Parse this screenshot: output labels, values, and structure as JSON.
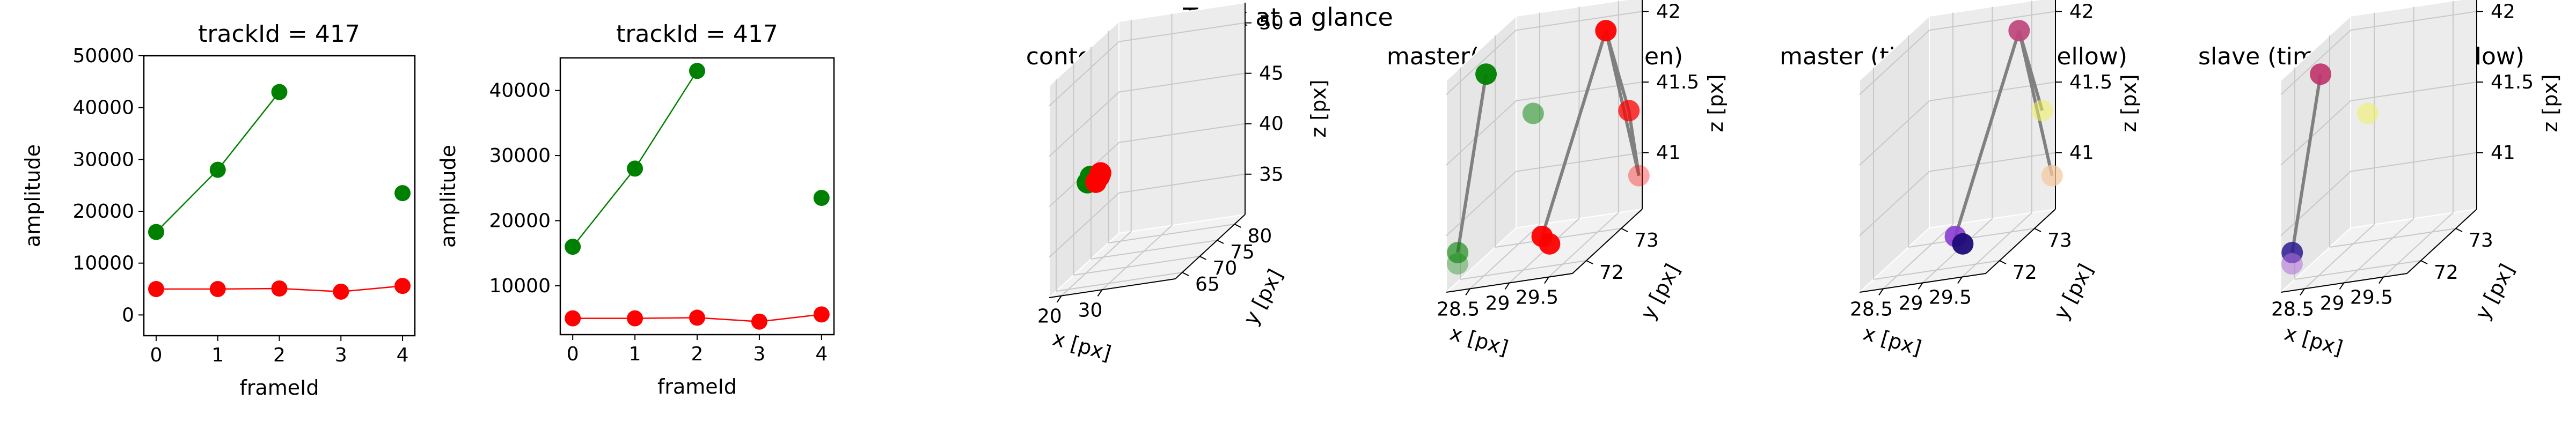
{
  "figure": {
    "suptitle": "Track at a glance"
  },
  "colors": {
    "master": "#ff0000",
    "slave": "#008000",
    "line": "#808080",
    "pane": "#f2f2f2",
    "pane_edge": "#ffffff",
    "grid": "#d9d9d9"
  },
  "chart_data": [
    {
      "type": "line",
      "title": "trackId = 417",
      "xlabel": "frameId",
      "ylabel": "amplitude",
      "xlim": [
        -0.2,
        4.2
      ],
      "ylim": [
        -4000,
        50000
      ],
      "xticks": [
        0,
        1,
        2,
        3,
        4
      ],
      "yticks": [
        0,
        10000,
        20000,
        30000,
        40000,
        50000
      ],
      "series": [
        {
          "color": "#008000",
          "segments": [
            [
              [
                0,
                16000
              ],
              [
                1,
                28000
              ],
              [
                2,
                43000
              ]
            ],
            [
              [
                4,
                23500
              ]
            ]
          ]
        },
        {
          "color": "#ff0000",
          "segments": [
            [
              [
                0,
                5000
              ],
              [
                1,
                5000
              ],
              [
                2,
                5100
              ],
              [
                3,
                4500
              ],
              [
                4,
                5600
              ]
            ]
          ]
        }
      ]
    },
    {
      "type": "line",
      "title": "trackId = 417",
      "xlabel": "frameId",
      "ylabel": "amplitude",
      "xlim": [
        -0.2,
        4.2
      ],
      "ylim": [
        2500,
        45000
      ],
      "xticks": [
        0,
        1,
        2,
        3,
        4
      ],
      "yticks": [
        10000,
        20000,
        30000,
        40000
      ],
      "series": [
        {
          "color": "#008000",
          "segments": [
            [
              [
                0,
                16000
              ],
              [
                1,
                28000
              ],
              [
                2,
                43000
              ]
            ],
            [
              [
                4,
                23500
              ]
            ]
          ]
        },
        {
          "color": "#ff0000",
          "segments": [
            [
              [
                0,
                5000
              ],
              [
                1,
                5000
              ],
              [
                2,
                5100
              ],
              [
                3,
                4500
              ],
              [
                4,
                5600
              ]
            ]
          ]
        }
      ]
    },
    {
      "type": "scatter3d",
      "title": "context +- 10px",
      "xlabel": "x [px]",
      "ylabel": "y [px]",
      "zlabel": "z [px]",
      "xlim": [
        17,
        48
      ],
      "ylim": [
        63,
        83
      ],
      "zlim": [
        31,
        52
      ],
      "xticks": [
        20,
        30
      ],
      "yticks": [
        65,
        70,
        75,
        80
      ],
      "zticks": [
        35,
        40,
        45,
        50
      ],
      "points": [
        {
          "x": 21.5,
          "y": 68.7,
          "z": 40.3,
          "color": "#008000"
        },
        {
          "x": 22.0,
          "y": 69.0,
          "z": 40.8,
          "color": "#008000"
        },
        {
          "x": 23.5,
          "y": 68.8,
          "z": 40.2,
          "color": "#ff0000"
        },
        {
          "x": 24.0,
          "y": 69.2,
          "z": 40.6,
          "color": "#ff0000"
        },
        {
          "x": 24.5,
          "y": 69.0,
          "z": 41.0,
          "color": "#ff0000"
        }
      ],
      "lines": []
    },
    {
      "type": "scatter3d",
      "title": "master(red) slave(green)",
      "xlabel": "x [px]",
      "ylabel": "y [px]",
      "zlabel": "z [px]",
      "xlim": [
        28.2,
        29.8
      ],
      "ylim": [
        71.6,
        73.6
      ],
      "zlim": [
        40.6,
        42.1
      ],
      "xticks": [
        28.5,
        29.0,
        29.5
      ],
      "yticks": [
        72,
        73
      ],
      "zticks": [
        41.0,
        41.5,
        42.0
      ],
      "points": [
        {
          "x": 28.35,
          "y": 72.4,
          "z": 41.95,
          "color": "#008000",
          "opacity": 0.95
        },
        {
          "x": 28.55,
          "y": 73.3,
          "z": 41.45,
          "color": "#008000",
          "opacity": 0.5
        },
        {
          "x": 28.3,
          "y": 71.7,
          "z": 40.85,
          "color": "#008000",
          "opacity": 0.6
        },
        {
          "x": 28.32,
          "y": 71.65,
          "z": 40.78,
          "color": "#008000",
          "opacity": 0.35
        },
        {
          "x": 29.45,
          "y": 73.35,
          "z": 41.95,
          "color": "#ff0000",
          "opacity": 0.95
        },
        {
          "x": 29.72,
          "y": 73.4,
          "z": 41.35,
          "color": "#ff0000",
          "opacity": 0.75
        },
        {
          "x": 29.78,
          "y": 73.55,
          "z": 40.85,
          "color": "#ff0000",
          "opacity": 0.35
        },
        {
          "x": 29.15,
          "y": 72.2,
          "z": 40.78,
          "color": "#ff0000",
          "opacity": 0.95
        },
        {
          "x": 29.2,
          "y": 72.3,
          "z": 40.7,
          "color": "#ff0000",
          "opacity": 0.95
        }
      ],
      "lines": [
        {
          "from": 0,
          "to": 2
        },
        {
          "from": 7,
          "to": 4
        },
        {
          "from": 4,
          "to": 5
        },
        {
          "from": 5,
          "to": 6
        },
        {
          "from": 4,
          "to": 6
        }
      ]
    },
    {
      "type": "scatter3d",
      "title": "master (time: blue -> yellow)",
      "xlabel": "x [px]",
      "ylabel": "y [px]",
      "zlabel": "z [px]",
      "xlim": [
        28.2,
        29.8
      ],
      "ylim": [
        71.6,
        73.6
      ],
      "zlim": [
        40.6,
        42.1
      ],
      "xticks": [
        28.5,
        29.0,
        29.5
      ],
      "yticks": [
        72,
        73
      ],
      "zticks": [
        41.0,
        41.5,
        42.0
      ],
      "points": [
        {
          "x": 29.45,
          "y": 73.35,
          "z": 41.95,
          "color": "#c0427a",
          "opacity": 0.9
        },
        {
          "x": 29.72,
          "y": 73.4,
          "z": 41.35,
          "color": "#f0f060",
          "opacity": 0.55
        },
        {
          "x": 29.78,
          "y": 73.55,
          "z": 40.85,
          "color": "#f5c8a0",
          "opacity": 0.75
        },
        {
          "x": 29.15,
          "y": 72.2,
          "z": 40.78,
          "color": "#8a3bd0",
          "opacity": 0.9
        },
        {
          "x": 29.2,
          "y": 72.3,
          "z": 40.7,
          "color": "#1e0a78",
          "opacity": 0.95
        }
      ],
      "lines": [
        {
          "from": 3,
          "to": 0
        },
        {
          "from": 0,
          "to": 2
        },
        {
          "from": 0,
          "to": 1
        }
      ]
    },
    {
      "type": "scatter3d",
      "title": "slave (time: blue -> yellow)",
      "xlabel": "x [px]",
      "ylabel": "y [px]",
      "zlabel": "z [px]",
      "xlim": [
        28.2,
        29.8
      ],
      "ylim": [
        71.6,
        73.6
      ],
      "zlim": [
        40.6,
        42.1
      ],
      "xticks": [
        28.5,
        29.0,
        29.5
      ],
      "yticks": [
        72,
        73
      ],
      "zticks": [
        41.0,
        41.5,
        42.0
      ],
      "points": [
        {
          "x": 28.35,
          "y": 72.4,
          "z": 41.95,
          "color": "#c0326a",
          "opacity": 0.9
        },
        {
          "x": 28.55,
          "y": 73.3,
          "z": 41.45,
          "color": "#f0f060",
          "opacity": 0.55
        },
        {
          "x": 28.3,
          "y": 71.7,
          "z": 40.85,
          "color": "#2a1a90",
          "opacity": 0.85
        },
        {
          "x": 28.32,
          "y": 71.65,
          "z": 40.78,
          "color": "#b070d8",
          "opacity": 0.55
        }
      ],
      "lines": [
        {
          "from": 0,
          "to": 2
        }
      ]
    }
  ]
}
